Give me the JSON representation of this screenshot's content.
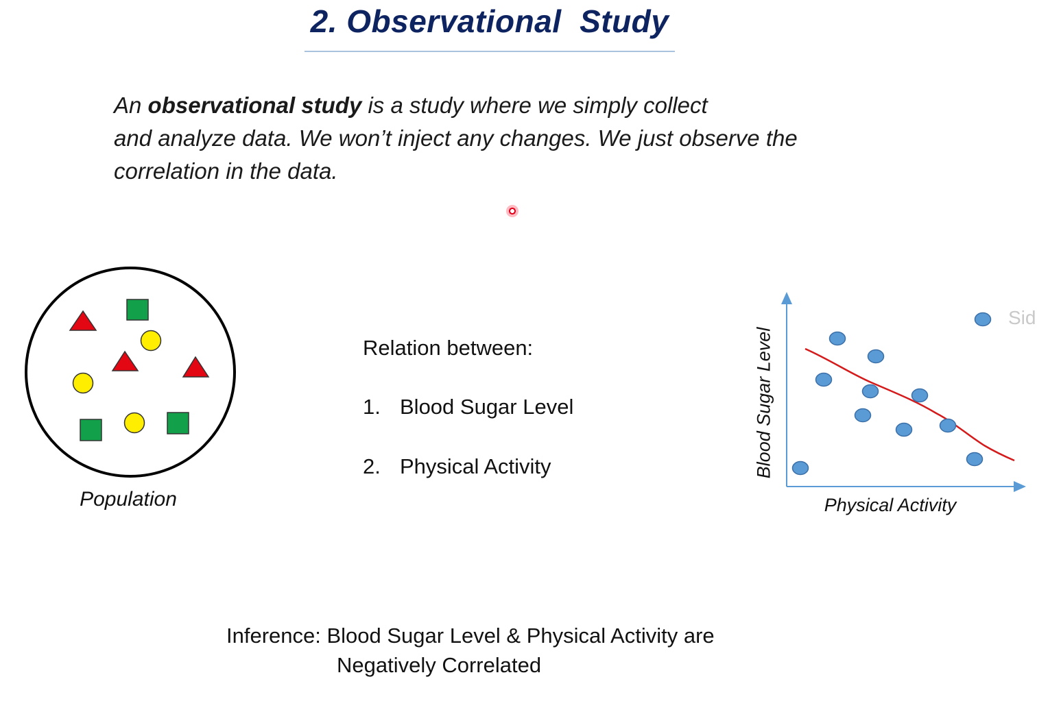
{
  "title": "2. Observational  Study",
  "intro": {
    "prefix": "An ",
    "bold": "observational study",
    "rest": " is a study where we simply collect",
    "line2": "and analyze data. We won’t inject any changes. We just observe the",
    "line3": "correlation in the data."
  },
  "population": {
    "label": "Population",
    "colors": {
      "circle_stroke": "#000000",
      "triangle": "#e30613",
      "square": "#13a04a",
      "dot": "#ffee00"
    }
  },
  "relation": {
    "heading": "Relation between:",
    "items": [
      {
        "num": "1.",
        "label": "Blood Sugar Level"
      },
      {
        "num": "2.",
        "label": "Physical Activity"
      }
    ]
  },
  "scatter": {
    "xlabel": "Physical Activity",
    "ylabel": "Blood Sugar Level",
    "side_text": "Sid",
    "colors": {
      "axis": "#5b9bd5",
      "point_fill": "#5b9bd5",
      "point_stroke": "#3a6fa8",
      "trend": "#d41a1a"
    }
  },
  "inference": {
    "line1": "Inference: Blood Sugar Level & Physical Activity are",
    "line2": "Negatively Correlated"
  }
}
